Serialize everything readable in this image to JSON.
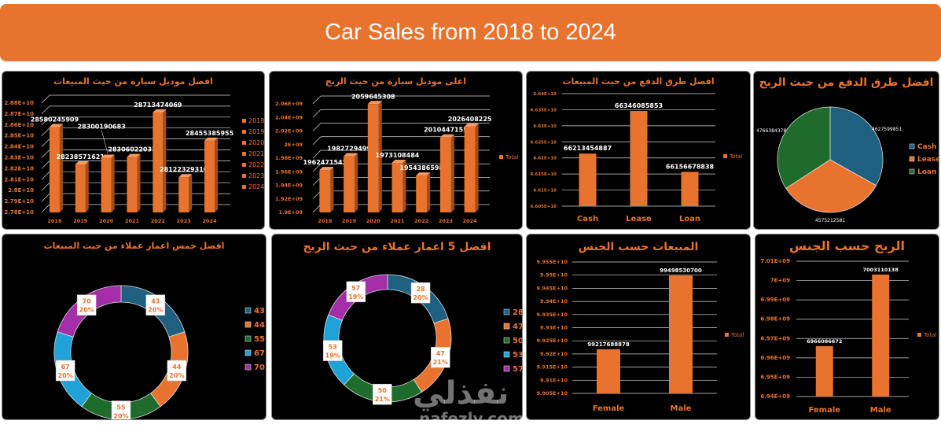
{
  "header": {
    "title": "Car Sales from 2018 to 2024"
  },
  "watermark": {
    "arabic": "نفذلي",
    "latin": "nafezly.com"
  },
  "colors": {
    "accent": "#e8732e",
    "cash": "#1f5f80",
    "lease": "#e8732e",
    "loan": "#1e6b2c",
    "age4": "#1ea2d8",
    "age5": "#a42ea8",
    "grid": "#d9d9d9",
    "label": "#ffffff"
  },
  "chart_data": [
    {
      "id": "c1",
      "type": "bar",
      "title": "افضل موديل سيارة من حيث المبيعات",
      "categories": [
        "2018",
        "2019",
        "2020",
        "2021",
        "2022",
        "2023",
        "2024"
      ],
      "values": [
        28580245909,
        28238571621,
        28300190683,
        28306022031,
        28713474069,
        28122329310,
        28455385955
      ],
      "data_labels": [
        "28580245909",
        "28238571621",
        "28300190683",
        "28306022031",
        "28713474069",
        "28122329310",
        "28455385955"
      ],
      "ylim": [
        27800000000,
        28800000000
      ],
      "ytick_labels": [
        "2.78E+10",
        "2.79E+10",
        "2.8E+10",
        "2.81E+10",
        "2.82E+10",
        "2.83E+10",
        "2.84E+10",
        "2.85E+10",
        "2.86E+10",
        "2.87E+10",
        "2.88E+10"
      ],
      "legend": [
        "2018",
        "2019",
        "2020",
        "2021",
        "2022",
        "2023",
        "2024"
      ],
      "legend_position": "right",
      "grid": true,
      "style": "3d"
    },
    {
      "id": "c2",
      "type": "bar",
      "title": "اعلى موديل سيارة من حيث الربح",
      "categories": [
        "2018",
        "2019",
        "2020",
        "2021",
        "2022",
        "2023",
        "2024"
      ],
      "values": [
        1962471542,
        1982729499,
        2059645308,
        1973108484,
        1954386598,
        2010447155,
        2026408225
      ],
      "data_labels": [
        "1962471542",
        "1982729499",
        "2059645308",
        "1973108484",
        "1954386598",
        "2010447155",
        "2026408225"
      ],
      "ylim": [
        1900000000,
        2060000000
      ],
      "ytick_labels": [
        "1.9E+09",
        "1.92E+09",
        "1.94E+09",
        "1.96E+09",
        "1.98E+09",
        "2E+09",
        "2.02E+09",
        "2.04E+09",
        "2.06E+09"
      ],
      "legend": [
        "Total"
      ],
      "legend_position": "right",
      "grid": true,
      "style": "3d"
    },
    {
      "id": "c3",
      "type": "bar",
      "title": "افضل طرق الدفع من حيث المبيعات",
      "categories": [
        "Cash",
        "Lease",
        "Loan"
      ],
      "values": [
        66213454887,
        66346085853,
        66156678838
      ],
      "data_labels": [
        "66213454887",
        "66346085853",
        "66156678838"
      ],
      "ylim": [
        66050000000,
        66400000000
      ],
      "ytick_labels": [
        "6.605E+10",
        "6.61E+10",
        "6.615E+10",
        "6.62E+10",
        "6.625E+10",
        "6.63E+10",
        "6.635E+10",
        "6.64E+10"
      ],
      "legend": [
        "Total"
      ],
      "legend_position": "right",
      "grid": true,
      "style": "flat"
    },
    {
      "id": "c4",
      "type": "pie",
      "title": "افضل طرق الدفع من جيث الربح",
      "categories": [
        "Cash",
        "Lease",
        "Loan"
      ],
      "values": [
        4627599851,
        4575212581,
        4766384378
      ],
      "data_labels": [
        "4627599851",
        "4575212581",
        "4766384378"
      ],
      "legend": [
        "Cash",
        "Lease",
        "Loan"
      ],
      "legend_position": "right"
    },
    {
      "id": "c5",
      "type": "pie",
      "variant": "donut",
      "title": "افضل خمس اعمار عملاء من حيث المبيعات",
      "categories": [
        "43",
        "44",
        "55",
        "67",
        "70"
      ],
      "percent": [
        20,
        20,
        20,
        20,
        20
      ],
      "data_labels": [
        "20%",
        "20%",
        "20%",
        "20%",
        "20%"
      ],
      "legend": [
        "43",
        "44",
        "55",
        "67",
        "70"
      ],
      "legend_position": "right"
    },
    {
      "id": "c6",
      "type": "pie",
      "variant": "donut",
      "title": "افضل 5 اعمار عملاء من حيث الربح",
      "categories": [
        "28",
        "47",
        "50",
        "53",
        "57"
      ],
      "percent": [
        20,
        21,
        21,
        19,
        19
      ],
      "data_labels": [
        "20%",
        "21%",
        "21%",
        "19%",
        "19%"
      ],
      "legend": [
        "28",
        "47",
        "50",
        "53",
        "57"
      ],
      "legend_position": "right"
    },
    {
      "id": "c7",
      "type": "bar",
      "title": "المبيعات حسب الجنس",
      "categories": [
        "Female",
        "Male"
      ],
      "values": [
        99217688878,
        99498530700
      ],
      "data_labels": [
        "99217688878",
        "99498530700"
      ],
      "ylim": [
        99050000000,
        99550000000
      ],
      "ytick_labels": [
        "9.905E+10",
        "9.91E+10",
        "9.915E+10",
        "9.92E+10",
        "9.925E+10",
        "9.93E+10",
        "9.935E+10",
        "9.94E+10",
        "9.945E+10",
        "9.95E+10",
        "9.955E+10"
      ],
      "legend": [
        "Total"
      ],
      "legend_position": "right",
      "grid": true,
      "style": "flat"
    },
    {
      "id": "c8",
      "type": "bar",
      "title": "الربح حسب الجنس",
      "categories": [
        "Female",
        "Male"
      ],
      "values": [
        6966086672,
        7003110138
      ],
      "data_labels": [
        "6966086672",
        "7003110138"
      ],
      "ylim": [
        6940000000,
        7010000000
      ],
      "ytick_labels": [
        "6.94E+09",
        "6.95E+09",
        "6.96E+09",
        "6.97E+09",
        "6.98E+09",
        "6.99E+09",
        "7E+09",
        "7.01E+09"
      ],
      "legend": [
        "Total"
      ],
      "legend_position": "right",
      "grid": true,
      "style": "flat"
    }
  ]
}
